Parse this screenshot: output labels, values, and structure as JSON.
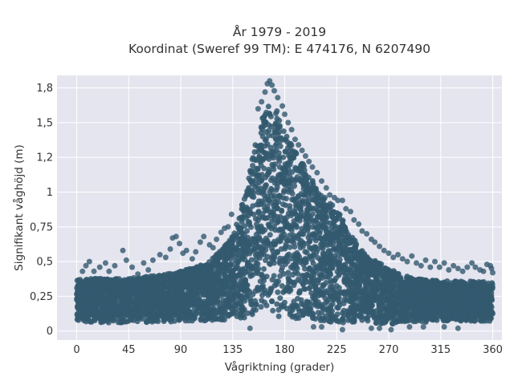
{
  "chart_data": {
    "type": "scatter",
    "title": "År 1979 - 2019",
    "subtitle": "Koordinat (Sweref 99 TM): E 474176, N 6207490",
    "xlabel": "Vågriktning (grader)",
    "ylabel": "Signifikant våghöjd (m)",
    "xlim": [
      -17,
      368
    ],
    "ylim": [
      -0.065,
      1.84
    ],
    "xticks": [
      0,
      45,
      90,
      135,
      180,
      225,
      270,
      315,
      360
    ],
    "xtick_labels": [
      "0",
      "45",
      "90",
      "135",
      "180",
      "225",
      "270",
      "315",
      "360"
    ],
    "yticks": [
      0,
      0.25,
      0.5,
      0.75,
      1,
      1.25,
      1.5,
      1.75
    ],
    "ytick_labels": [
      "0",
      "0,25",
      "0,5",
      "0,75",
      "1",
      "1,2",
      "1,5",
      "1,8"
    ],
    "grid": true,
    "marker_color": "#33596f",
    "background_color": "#e5e5ef",
    "envelope": {
      "x": [
        0,
        20,
        45,
        70,
        90,
        110,
        125,
        135,
        145,
        155,
        160,
        165,
        170,
        175,
        180,
        190,
        200,
        210,
        225,
        240,
        250,
        270,
        290,
        315,
        340,
        360
      ],
      "y_low": [
        0.07,
        0.06,
        0.06,
        0.06,
        0.07,
        0.07,
        0.08,
        0.08,
        0.09,
        0.1,
        0.1,
        0.1,
        0.1,
        0.1,
        0.09,
        0.08,
        0.08,
        0.07,
        0.06,
        0.06,
        0.06,
        0.05,
        0.06,
        0.07,
        0.07,
        0.07
      ],
      "y_high": [
        0.37,
        0.38,
        0.38,
        0.4,
        0.43,
        0.48,
        0.58,
        0.7,
        0.96,
        1.38,
        1.52,
        1.62,
        1.65,
        1.55,
        1.43,
        1.28,
        1.15,
        1.0,
        0.88,
        0.66,
        0.55,
        0.45,
        0.38,
        0.36,
        0.36,
        0.35
      ]
    },
    "outliers": [
      [
        1,
        0.28
      ],
      [
        3,
        0.37
      ],
      [
        5,
        0.43
      ],
      [
        8,
        0.47
      ],
      [
        11,
        0.5
      ],
      [
        15,
        0.43
      ],
      [
        20,
        0.46
      ],
      [
        25,
        0.49
      ],
      [
        28,
        0.43
      ],
      [
        33,
        0.47
      ],
      [
        40,
        0.58
      ],
      [
        43,
        0.51
      ],
      [
        48,
        0.46
      ],
      [
        53,
        0.41
      ],
      [
        58,
        0.49
      ],
      [
        62,
        0.44
      ],
      [
        66,
        0.51
      ],
      [
        72,
        0.55
      ],
      [
        77,
        0.53
      ],
      [
        81,
        0.59
      ],
      [
        83,
        0.67
      ],
      [
        86,
        0.68
      ],
      [
        89,
        0.63
      ],
      [
        92,
        0.56
      ],
      [
        95,
        0.58
      ],
      [
        100,
        0.52
      ],
      [
        103,
        0.57
      ],
      [
        107,
        0.64
      ],
      [
        110,
        0.68
      ],
      [
        115,
        0.62
      ],
      [
        118,
        0.6
      ],
      [
        121,
        0.66
      ],
      [
        125,
        0.71
      ],
      [
        128,
        0.74
      ],
      [
        131,
        0.75
      ],
      [
        134,
        0.84
      ],
      [
        165,
        1.78
      ],
      [
        167,
        1.8
      ],
      [
        169,
        1.77
      ],
      [
        171,
        1.73
      ],
      [
        163,
        1.72
      ],
      [
        174,
        1.68
      ],
      [
        160,
        1.65
      ],
      [
        157,
        1.6
      ],
      [
        178,
        1.62
      ],
      [
        180,
        1.56
      ],
      [
        183,
        1.5
      ],
      [
        186,
        1.45
      ],
      [
        189,
        1.38
      ],
      [
        192,
        1.34
      ],
      [
        195,
        1.3
      ],
      [
        198,
        1.26
      ],
      [
        201,
        1.22
      ],
      [
        204,
        1.18
      ],
      [
        208,
        1.14
      ],
      [
        212,
        1.08
      ],
      [
        216,
        1.03
      ],
      [
        219,
        0.98
      ],
      [
        223,
        0.96
      ],
      [
        226,
        0.94
      ],
      [
        230,
        0.94
      ],
      [
        233,
        0.88
      ],
      [
        237,
        0.86
      ],
      [
        240,
        0.8
      ],
      [
        244,
        0.77
      ],
      [
        247,
        0.72
      ],
      [
        251,
        0.7
      ],
      [
        255,
        0.66
      ],
      [
        258,
        0.64
      ],
      [
        262,
        0.61
      ],
      [
        266,
        0.58
      ],
      [
        270,
        0.56
      ],
      [
        274,
        0.53
      ],
      [
        278,
        0.55
      ],
      [
        282,
        0.52
      ],
      [
        286,
        0.5
      ],
      [
        290,
        0.54
      ],
      [
        294,
        0.49
      ],
      [
        298,
        0.47
      ],
      [
        302,
        0.51
      ],
      [
        306,
        0.46
      ],
      [
        310,
        0.5
      ],
      [
        314,
        0.46
      ],
      [
        318,
        0.49
      ],
      [
        322,
        0.44
      ],
      [
        326,
        0.47
      ],
      [
        330,
        0.45
      ],
      [
        334,
        0.43
      ],
      [
        338,
        0.46
      ],
      [
        342,
        0.49
      ],
      [
        345,
        0.46
      ],
      [
        349,
        0.44
      ],
      [
        352,
        0.43
      ],
      [
        355,
        0.48
      ],
      [
        358,
        0.47
      ],
      [
        359,
        0.45
      ],
      [
        360,
        0.42
      ],
      [
        150,
        0.02
      ],
      [
        205,
        0.03
      ],
      [
        230,
        0.01
      ],
      [
        255,
        0.02
      ],
      [
        272,
        0.01
      ],
      [
        288,
        0.03
      ],
      [
        300,
        0.03
      ],
      [
        330,
        0.02
      ],
      [
        318,
        0.03
      ],
      [
        262,
        0.02
      ],
      [
        212,
        0.03
      ]
    ]
  }
}
